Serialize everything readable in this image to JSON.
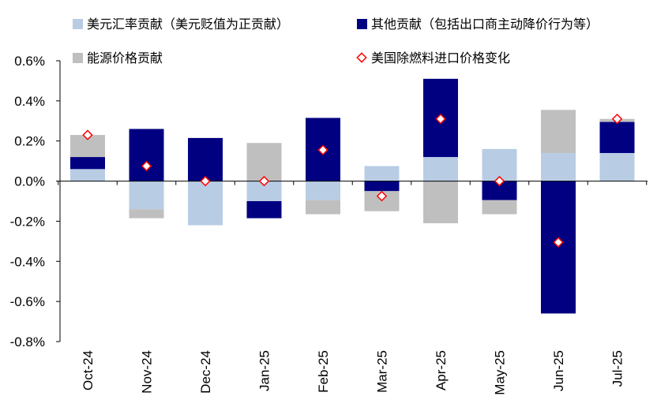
{
  "chart_data": {
    "type": "bar",
    "stacked": true,
    "categories": [
      "Oct-24",
      "Nov-24",
      "Dec-24",
      "Jan-25",
      "Feb-25",
      "Mar-25",
      "Apr-25",
      "May-25",
      "Jun-25",
      "Jul-25"
    ],
    "series": [
      {
        "key": "usd",
        "name": "美元汇率贡献（美元贬值为正贡献）",
        "color": "#b8cce4",
        "values": [
          0.06,
          -0.14,
          -0.22,
          -0.1,
          -0.095,
          0.075,
          0.12,
          0.16,
          0.14,
          0.14
        ]
      },
      {
        "key": "other",
        "name": "其他贡献（包括出口商主动降价行为等）",
        "color": "#000080",
        "values": [
          0.06,
          0.26,
          0.215,
          -0.085,
          0.315,
          -0.05,
          0.39,
          -0.095,
          -0.66,
          0.155
        ]
      },
      {
        "key": "energy",
        "name": "能源价格贡献",
        "color": "#bfbfbf",
        "values": [
          0.11,
          -0.045,
          0.0,
          0.19,
          -0.07,
          -0.1,
          -0.21,
          -0.07,
          0.215,
          0.015
        ]
      }
    ],
    "marker_series": {
      "key": "import",
      "name": "美国除燃料进口价格变化",
      "color": "#ff0000",
      "values": [
        0.23,
        0.075,
        0.0,
        0.0,
        0.155,
        -0.075,
        0.31,
        0.0,
        -0.305,
        0.31
      ]
    },
    "yticks": [
      "0.6%",
      "0.4%",
      "0.2%",
      "0.0%",
      "-0.2%",
      "-0.4%",
      "-0.6%",
      "-0.8%"
    ],
    "ytick_values": [
      0.6,
      0.4,
      0.2,
      0.0,
      -0.2,
      -0.4,
      -0.6,
      -0.8
    ],
    "ylim": [
      -0.8,
      0.6
    ],
    "xlabel": "",
    "ylabel": "",
    "legend_position": "top"
  }
}
